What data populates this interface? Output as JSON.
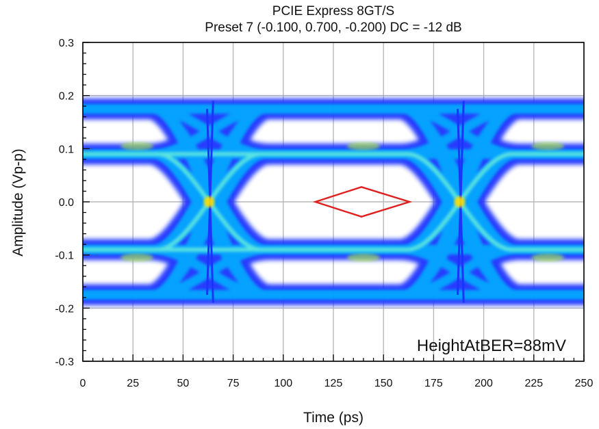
{
  "chart_data": {
    "type": "eye-diagram",
    "title": "PCIE Express 8GT/S",
    "subtitle": "Preset 7 (-0.100, 0.700, -0.200) DC = -12 dB",
    "xlabel": "Time (ps)",
    "ylabel": "Amplitude (Vp-p)",
    "xlim": [
      0,
      250
    ],
    "ylim": [
      -0.3,
      0.3
    ],
    "x_ticks": [
      0,
      25,
      50,
      75,
      100,
      125,
      150,
      175,
      200,
      225,
      250
    ],
    "y_ticks": [
      -0.3,
      -0.2,
      -0.1,
      0.0,
      0.1,
      0.2,
      0.3
    ],
    "x_tick_labels": [
      "0",
      "25",
      "50",
      "75",
      "100",
      "125",
      "150",
      "175",
      "200",
      "225",
      "250"
    ],
    "y_tick_labels": [
      "-0.3",
      "-0.2",
      "-0.1",
      "0.0",
      "0.1",
      "0.2",
      "0.3"
    ],
    "grid": true,
    "unit_interval_ps": 125,
    "crossing_times_ps": [
      63,
      188
    ],
    "levels": {
      "outer": 0.175,
      "inner": 0.09,
      "overshoot": 0.19,
      "crossing_band": 0.12
    },
    "eye_mask": {
      "points": [
        [
          116,
          0.0
        ],
        [
          139,
          0.028
        ],
        [
          163,
          0.0
        ],
        [
          139,
          -0.028
        ]
      ],
      "color": "#e02020"
    },
    "annotation": "HeightAtBER=88mV",
    "colors": {
      "outer_density": "#1a33ff",
      "mid_density": "#00b4ff",
      "high_density": "#7dffd4",
      "peak_density": "#b6ff2a",
      "max_density": "#ffdd00",
      "mask": "#e02020",
      "grid": "#b8b8b8"
    }
  }
}
